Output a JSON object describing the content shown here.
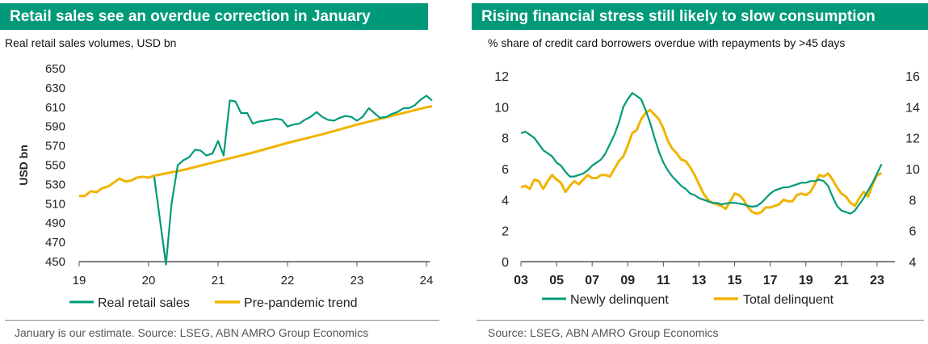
{
  "left": {
    "title": "Retail sales see an overdue correction in January",
    "subtitle": "Real retail sales volumes, USD bn",
    "source": "January is our estimate. Source: LSEG, ABN AMRO Group Economics",
    "colors": {
      "retail": "#009a7a",
      "trend": "#f0b400"
    }
  },
  "right": {
    "title": "Rising financial stress still likely to slow consumption",
    "subtitle": "% share of credit card borrowers overdue with repayments by >45 days",
    "source": "Source: LSEG, ABN AMRO Group Economics",
    "colors": {
      "newly": "#009a7a",
      "total": "#f0b400"
    }
  },
  "chart_data": [
    {
      "type": "line",
      "ylabel": "USD bn",
      "xlim": [
        2019,
        2024
      ],
      "ylim": [
        450,
        650
      ],
      "x_ticks": [
        2019,
        2020,
        2021,
        2022,
        2023,
        2024
      ],
      "x_tick_labels": [
        "19",
        "20",
        "21",
        "22",
        "23",
        "24"
      ],
      "y_ticks": [
        450,
        470,
        490,
        510,
        530,
        550,
        570,
        590,
        610,
        630,
        650
      ],
      "legend": "bottom",
      "series": [
        {
          "name": "Real retail sales",
          "points": [
            [
              2020.08,
              538
            ],
            [
              2020.17,
              490
            ],
            [
              2020.25,
              447
            ],
            [
              2020.33,
              510
            ],
            [
              2020.42,
              550
            ],
            [
              2020.5,
              555
            ],
            [
              2020.58,
              558
            ],
            [
              2020.67,
              566
            ],
            [
              2020.75,
              565
            ],
            [
              2020.83,
              560
            ],
            [
              2020.92,
              562
            ],
            [
              2021.0,
              575
            ],
            [
              2021.08,
              560
            ],
            [
              2021.17,
              617
            ],
            [
              2021.25,
              616
            ],
            [
              2021.33,
              604
            ],
            [
              2021.42,
              604
            ],
            [
              2021.5,
              593
            ],
            [
              2021.58,
              595
            ],
            [
              2021.67,
              596
            ],
            [
              2021.75,
              597
            ],
            [
              2021.83,
              598
            ],
            [
              2021.92,
              597
            ],
            [
              2022.0,
              590
            ],
            [
              2022.08,
              592
            ],
            [
              2022.17,
              593
            ],
            [
              2022.25,
              597
            ],
            [
              2022.33,
              600
            ],
            [
              2022.42,
              605
            ],
            [
              2022.5,
              600
            ],
            [
              2022.58,
              597
            ],
            [
              2022.67,
              596
            ],
            [
              2022.75,
              599
            ],
            [
              2022.83,
              601
            ],
            [
              2022.92,
              600
            ],
            [
              2023.0,
              596
            ],
            [
              2023.08,
              600
            ],
            [
              2023.17,
              609
            ],
            [
              2023.25,
              604
            ],
            [
              2023.33,
              599
            ],
            [
              2023.42,
              600
            ],
            [
              2023.5,
              603
            ],
            [
              2023.58,
              605
            ],
            [
              2023.67,
              609
            ],
            [
              2023.75,
              609
            ],
            [
              2023.83,
              612
            ],
            [
              2023.92,
              618
            ],
            [
              2024.0,
              622
            ],
            [
              2024.08,
              617
            ]
          ]
        },
        {
          "name": "Pre-pandemic trend",
          "points": [
            [
              2019.0,
              518
            ],
            [
              2019.08,
              518
            ],
            [
              2019.17,
              523
            ],
            [
              2019.25,
              522
            ],
            [
              2019.33,
              526
            ],
            [
              2019.42,
              528
            ],
            [
              2019.5,
              532
            ],
            [
              2019.58,
              536
            ],
            [
              2019.67,
              533
            ],
            [
              2019.75,
              534
            ],
            [
              2019.83,
              537
            ],
            [
              2019.92,
              538
            ],
            [
              2020.0,
              537
            ],
            [
              2020.08,
              539
            ],
            [
              2020.5,
              545
            ],
            [
              2021.0,
              554
            ],
            [
              2021.5,
              563
            ],
            [
              2022.0,
              573
            ],
            [
              2022.5,
              582
            ],
            [
              2023.0,
              592
            ],
            [
              2023.5,
              601
            ],
            [
              2024.0,
              610
            ],
            [
              2024.08,
              611
            ]
          ]
        }
      ]
    },
    {
      "type": "line",
      "xlim": [
        2003,
        2024
      ],
      "ylim": [
        0,
        12
      ],
      "y2lim": [
        4,
        16
      ],
      "x_ticks": [
        2003,
        2005,
        2007,
        2009,
        2011,
        2013,
        2015,
        2017,
        2019,
        2021,
        2023
      ],
      "x_tick_labels": [
        "03",
        "05",
        "07",
        "09",
        "11",
        "13",
        "15",
        "17",
        "19",
        "21",
        "23"
      ],
      "y_ticks": [
        0,
        2,
        4,
        6,
        8,
        10,
        12
      ],
      "y2_ticks": [
        4,
        6,
        8,
        10,
        12,
        14,
        16
      ],
      "legend": "bottom",
      "series": [
        {
          "name": "Newly delinquent",
          "axis": "left",
          "points": [
            [
              2003.0,
              8.3
            ],
            [
              2003.25,
              8.4
            ],
            [
              2003.5,
              8.2
            ],
            [
              2003.75,
              8.0
            ],
            [
              2004.0,
              7.6
            ],
            [
              2004.25,
              7.2
            ],
            [
              2004.5,
              7.0
            ],
            [
              2004.75,
              6.8
            ],
            [
              2005.0,
              6.4
            ],
            [
              2005.25,
              6.2
            ],
            [
              2005.5,
              5.8
            ],
            [
              2005.75,
              5.5
            ],
            [
              2006.0,
              5.5
            ],
            [
              2006.25,
              5.6
            ],
            [
              2006.5,
              5.7
            ],
            [
              2006.75,
              5.9
            ],
            [
              2007.0,
              6.2
            ],
            [
              2007.25,
              6.4
            ],
            [
              2007.5,
              6.6
            ],
            [
              2007.75,
              7.0
            ],
            [
              2008.0,
              7.6
            ],
            [
              2008.25,
              8.2
            ],
            [
              2008.5,
              9.0
            ],
            [
              2008.75,
              10.0
            ],
            [
              2009.0,
              10.5
            ],
            [
              2009.25,
              10.9
            ],
            [
              2009.5,
              10.7
            ],
            [
              2009.75,
              10.5
            ],
            [
              2010.0,
              9.8
            ],
            [
              2010.25,
              9.0
            ],
            [
              2010.5,
              8.0
            ],
            [
              2010.75,
              7.1
            ],
            [
              2011.0,
              6.4
            ],
            [
              2011.25,
              5.9
            ],
            [
              2011.5,
              5.5
            ],
            [
              2011.75,
              5.2
            ],
            [
              2012.0,
              4.9
            ],
            [
              2012.25,
              4.7
            ],
            [
              2012.5,
              4.4
            ],
            [
              2012.75,
              4.3
            ],
            [
              2013.0,
              4.1
            ],
            [
              2013.25,
              4.0
            ],
            [
              2013.5,
              3.9
            ],
            [
              2013.75,
              3.8
            ],
            [
              2014.0,
              3.8
            ],
            [
              2014.25,
              3.7
            ],
            [
              2014.5,
              3.75
            ],
            [
              2014.75,
              3.8
            ],
            [
              2015.0,
              3.8
            ],
            [
              2015.25,
              3.75
            ],
            [
              2015.5,
              3.7
            ],
            [
              2015.75,
              3.6
            ],
            [
              2016.0,
              3.55
            ],
            [
              2016.25,
              3.6
            ],
            [
              2016.5,
              3.8
            ],
            [
              2016.75,
              4.1
            ],
            [
              2017.0,
              4.4
            ],
            [
              2017.25,
              4.6
            ],
            [
              2017.5,
              4.7
            ],
            [
              2017.75,
              4.8
            ],
            [
              2018.0,
              4.8
            ],
            [
              2018.25,
              4.9
            ],
            [
              2018.5,
              5.0
            ],
            [
              2018.75,
              5.1
            ],
            [
              2019.0,
              5.1
            ],
            [
              2019.25,
              5.2
            ],
            [
              2019.5,
              5.2
            ],
            [
              2019.75,
              5.3
            ],
            [
              2020.0,
              5.2
            ],
            [
              2020.25,
              4.9
            ],
            [
              2020.5,
              4.2
            ],
            [
              2020.75,
              3.6
            ],
            [
              2021.0,
              3.3
            ],
            [
              2021.25,
              3.2
            ],
            [
              2021.5,
              3.1
            ],
            [
              2021.75,
              3.3
            ],
            [
              2022.0,
              3.7
            ],
            [
              2022.25,
              4.1
            ],
            [
              2022.5,
              4.6
            ],
            [
              2022.75,
              5.1
            ],
            [
              2023.0,
              5.7
            ],
            [
              2023.25,
              6.3
            ]
          ]
        },
        {
          "name": "Total delinquent",
          "axis": "right",
          "points": [
            [
              2003.0,
              8.8
            ],
            [
              2003.25,
              8.9
            ],
            [
              2003.5,
              8.7
            ],
            [
              2003.75,
              9.3
            ],
            [
              2004.0,
              9.2
            ],
            [
              2004.25,
              8.7
            ],
            [
              2004.5,
              9.2
            ],
            [
              2004.75,
              9.6
            ],
            [
              2005.0,
              9.3
            ],
            [
              2005.25,
              9.1
            ],
            [
              2005.5,
              8.5
            ],
            [
              2005.75,
              8.9
            ],
            [
              2006.0,
              9.2
            ],
            [
              2006.25,
              9.0
            ],
            [
              2006.5,
              9.3
            ],
            [
              2006.75,
              9.6
            ],
            [
              2007.0,
              9.4
            ],
            [
              2007.25,
              9.4
            ],
            [
              2007.5,
              9.6
            ],
            [
              2007.75,
              9.6
            ],
            [
              2008.0,
              9.5
            ],
            [
              2008.25,
              10.0
            ],
            [
              2008.5,
              10.5
            ],
            [
              2008.75,
              10.8
            ],
            [
              2009.0,
              11.5
            ],
            [
              2009.25,
              12.3
            ],
            [
              2009.5,
              12.5
            ],
            [
              2009.75,
              13.2
            ],
            [
              2010.0,
              13.6
            ],
            [
              2010.25,
              13.8
            ],
            [
              2010.5,
              13.5
            ],
            [
              2010.75,
              13.2
            ],
            [
              2011.0,
              12.6
            ],
            [
              2011.25,
              11.8
            ],
            [
              2011.5,
              11.3
            ],
            [
              2011.75,
              11.0
            ],
            [
              2012.0,
              10.6
            ],
            [
              2012.25,
              10.5
            ],
            [
              2012.5,
              10.1
            ],
            [
              2012.75,
              9.6
            ],
            [
              2013.0,
              9.0
            ],
            [
              2013.25,
              8.4
            ],
            [
              2013.5,
              8.0
            ],
            [
              2013.75,
              7.8
            ],
            [
              2014.0,
              7.7
            ],
            [
              2014.25,
              7.6
            ],
            [
              2014.5,
              7.4
            ],
            [
              2014.75,
              7.9
            ],
            [
              2015.0,
              8.4
            ],
            [
              2015.25,
              8.3
            ],
            [
              2015.5,
              8.0
            ],
            [
              2015.75,
              7.5
            ],
            [
              2016.0,
              7.2
            ],
            [
              2016.25,
              7.1
            ],
            [
              2016.5,
              7.2
            ],
            [
              2016.75,
              7.5
            ],
            [
              2017.0,
              7.5
            ],
            [
              2017.25,
              7.6
            ],
            [
              2017.5,
              7.7
            ],
            [
              2017.75,
              8.0
            ],
            [
              2018.0,
              7.9
            ],
            [
              2018.25,
              7.9
            ],
            [
              2018.5,
              8.3
            ],
            [
              2018.75,
              8.4
            ],
            [
              2019.0,
              8.3
            ],
            [
              2019.25,
              8.5
            ],
            [
              2019.5,
              9.0
            ],
            [
              2019.75,
              9.6
            ],
            [
              2020.0,
              9.5
            ],
            [
              2020.25,
              9.7
            ],
            [
              2020.5,
              9.3
            ],
            [
              2020.75,
              8.8
            ],
            [
              2021.0,
              8.4
            ],
            [
              2021.25,
              8.2
            ],
            [
              2021.5,
              7.8
            ],
            [
              2021.75,
              7.6
            ],
            [
              2022.0,
              8.1
            ],
            [
              2022.25,
              8.5
            ],
            [
              2022.5,
              8.2
            ],
            [
              2022.75,
              9.0
            ],
            [
              2023.0,
              9.6
            ],
            [
              2023.25,
              9.7
            ]
          ]
        }
      ]
    }
  ]
}
